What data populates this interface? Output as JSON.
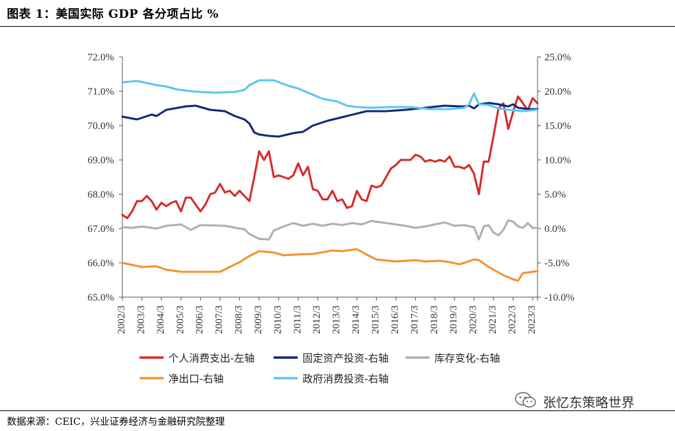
{
  "title": "图表 1：美国实际 GDP 各分项占比 %",
  "source": "数据来源：CEIC，兴业证券经济与金融研究院整理",
  "watermark": "张忆东策略世界",
  "chart_data": {
    "type": "line",
    "title": "美国实际 GDP 各分项占比 %",
    "left_axis": {
      "min": 65.0,
      "max": 72.0,
      "step": 1.0,
      "ticks": [
        "65.0%",
        "66.0%",
        "67.0%",
        "68.0%",
        "69.0%",
        "70.0%",
        "71.0%",
        "72.0%"
      ]
    },
    "right_axis": {
      "min": -10.0,
      "max": 25.0,
      "step": 5.0,
      "ticks": [
        "-10.0%",
        "-5.0%",
        "0.0%",
        "5.0%",
        "10.0%",
        "15.0%",
        "20.0%",
        "25.0%"
      ]
    },
    "x_start": "2002Q3",
    "x_end": "2023Q3",
    "x_tick_labels": [
      "2002/3",
      "2003/3",
      "2004/3",
      "2005/3",
      "2006/3",
      "2007/3",
      "2008/3",
      "2009/3",
      "2010/3",
      "2011/3",
      "2012/3",
      "2013/3",
      "2014/3",
      "2015/3",
      "2016/3",
      "2017/3",
      "2018/3",
      "2019/3",
      "2020/3",
      "2021/3",
      "2022/3",
      "2023/3"
    ],
    "grid": false,
    "legend_position": "bottom",
    "series": [
      {
        "name": "个人消费支出-左轴",
        "axis": "left",
        "color": "#d62b2b",
        "anchors": [
          [
            "2002Q3",
            67.4
          ],
          [
            "2002Q4",
            67.3
          ],
          [
            "2003Q1",
            67.5
          ],
          [
            "2003Q2",
            67.8
          ],
          [
            "2003Q3",
            67.8
          ],
          [
            "2003Q4",
            67.95
          ],
          [
            "2004Q1",
            67.8
          ],
          [
            "2004Q2",
            67.55
          ],
          [
            "2004Q3",
            67.75
          ],
          [
            "2004Q4",
            67.65
          ],
          [
            "2005Q1",
            67.75
          ],
          [
            "2005Q2",
            67.8
          ],
          [
            "2005Q3",
            67.5
          ],
          [
            "2005Q4",
            67.9
          ],
          [
            "2006Q1",
            67.9
          ],
          [
            "2006Q2",
            67.7
          ],
          [
            "2006Q3",
            67.5
          ],
          [
            "2006Q4",
            67.7
          ],
          [
            "2007Q1",
            68.0
          ],
          [
            "2007Q2",
            68.05
          ],
          [
            "2007Q3",
            68.3
          ],
          [
            "2007Q4",
            68.05
          ],
          [
            "2008Q1",
            68.1
          ],
          [
            "2008Q2",
            67.95
          ],
          [
            "2008Q3",
            68.1
          ],
          [
            "2008Q4",
            67.95
          ],
          [
            "2009Q1",
            67.8
          ],
          [
            "2009Q2",
            68.5
          ],
          [
            "2009Q3",
            69.25
          ],
          [
            "2009Q4",
            69.0
          ],
          [
            "2010Q1",
            69.25
          ],
          [
            "2010Q2",
            68.5
          ],
          [
            "2010Q3",
            68.55
          ],
          [
            "2010Q4",
            68.5
          ],
          [
            "2011Q1",
            68.45
          ],
          [
            "2011Q2",
            68.55
          ],
          [
            "2011Q3",
            68.9
          ],
          [
            "2011Q4",
            68.55
          ],
          [
            "2012Q1",
            68.8
          ],
          [
            "2012Q2",
            68.15
          ],
          [
            "2012Q3",
            68.1
          ],
          [
            "2012Q4",
            67.85
          ],
          [
            "2013Q1",
            67.85
          ],
          [
            "2013Q2",
            68.1
          ],
          [
            "2013Q3",
            67.8
          ],
          [
            "2013Q4",
            67.85
          ],
          [
            "2014Q1",
            67.6
          ],
          [
            "2014Q2",
            67.65
          ],
          [
            "2014Q3",
            68.1
          ],
          [
            "2014Q4",
            67.85
          ],
          [
            "2015Q1",
            67.8
          ],
          [
            "2015Q2",
            68.25
          ],
          [
            "2015Q3",
            68.2
          ],
          [
            "2015Q4",
            68.25
          ],
          [
            "2016Q1",
            68.5
          ],
          [
            "2016Q2",
            68.75
          ],
          [
            "2016Q3",
            68.85
          ],
          [
            "2016Q4",
            69.0
          ],
          [
            "2017Q1",
            69.0
          ],
          [
            "2017Q2",
            69.0
          ],
          [
            "2017Q3",
            69.15
          ],
          [
            "2017Q4",
            69.1
          ],
          [
            "2018Q1",
            68.95
          ],
          [
            "2018Q2",
            69.0
          ],
          [
            "2018Q3",
            68.95
          ],
          [
            "2018Q4",
            69.0
          ],
          [
            "2019Q1",
            68.95
          ],
          [
            "2019Q2",
            69.1
          ],
          [
            "2019Q3",
            68.8
          ],
          [
            "2019Q4",
            68.8
          ],
          [
            "2020Q1",
            68.75
          ],
          [
            "2020Q2",
            68.85
          ],
          [
            "2020Q3",
            68.6
          ],
          [
            "2020Q4",
            68.0
          ],
          [
            "2021Q1",
            68.95
          ],
          [
            "2021Q2",
            68.95
          ],
          [
            "2021Q3",
            69.7
          ],
          [
            "2021Q4",
            70.5
          ],
          [
            "2022Q1",
            70.65
          ],
          [
            "2022Q2",
            69.9
          ],
          [
            "2022Q3",
            70.4
          ],
          [
            "2022Q4",
            70.85
          ],
          [
            "2023Q1",
            70.65
          ],
          [
            "2023Q2",
            70.45
          ],
          [
            "2023Q3",
            70.8
          ],
          [
            "2023Q4",
            70.65
          ]
        ]
      },
      {
        "name": "固定资产投资-右轴",
        "axis": "right",
        "color": "#12297a",
        "anchors": [
          [
            "2002Q3",
            16.3
          ],
          [
            "2003Q2",
            15.9
          ],
          [
            "2004Q1",
            16.6
          ],
          [
            "2004Q2",
            16.4
          ],
          [
            "2004Q4",
            17.3
          ],
          [
            "2005Q4",
            17.8
          ],
          [
            "2006Q2",
            17.9
          ],
          [
            "2007Q1",
            17.3
          ],
          [
            "2007Q4",
            17.1
          ],
          [
            "2008Q2",
            16.4
          ],
          [
            "2008Q4",
            15.9
          ],
          [
            "2009Q1",
            15.3
          ],
          [
            "2009Q2",
            14.0
          ],
          [
            "2009Q3",
            13.7
          ],
          [
            "2010Q1",
            13.5
          ],
          [
            "2010Q3",
            13.4
          ],
          [
            "2011Q2",
            13.9
          ],
          [
            "2011Q4",
            14.1
          ],
          [
            "2012Q2",
            15.0
          ],
          [
            "2013Q1",
            15.7
          ],
          [
            "2014Q1",
            16.4
          ],
          [
            "2015Q1",
            17.1
          ],
          [
            "2016Q1",
            17.1
          ],
          [
            "2017Q1",
            17.3
          ],
          [
            "2018Q1",
            17.6
          ],
          [
            "2019Q1",
            17.9
          ],
          [
            "2019Q4",
            17.8
          ],
          [
            "2020Q1",
            17.8
          ],
          [
            "2020Q2",
            17.9
          ],
          [
            "2020Q3",
            17.5
          ],
          [
            "2020Q4",
            18.1
          ],
          [
            "2021Q2",
            18.3
          ],
          [
            "2021Q4",
            18.1
          ],
          [
            "2022Q2",
            17.8
          ],
          [
            "2022Q3",
            18.1
          ],
          [
            "2022Q4",
            17.6
          ],
          [
            "2023Q2",
            17.4
          ],
          [
            "2023Q3",
            17.4
          ],
          [
            "2023Q4",
            17.4
          ]
        ]
      },
      {
        "name": "库存变化-右轴",
        "axis": "right",
        "color": "#b0b0b0",
        "anchors": [
          [
            "2002Q3",
            0.2
          ],
          [
            "2003Q1",
            0.1
          ],
          [
            "2003Q3",
            0.3
          ],
          [
            "2004Q2",
            0.0
          ],
          [
            "2004Q4",
            0.4
          ],
          [
            "2005Q3",
            0.6
          ],
          [
            "2006Q1",
            -0.2
          ],
          [
            "2006Q3",
            0.5
          ],
          [
            "2007Q4",
            0.4
          ],
          [
            "2008Q3",
            0.0
          ],
          [
            "2008Q4",
            -0.1
          ],
          [
            "2009Q1",
            -0.8
          ],
          [
            "2009Q3",
            -1.5
          ],
          [
            "2010Q1",
            -1.6
          ],
          [
            "2010Q2",
            -0.3
          ],
          [
            "2010Q4",
            0.3
          ],
          [
            "2011Q2",
            0.8
          ],
          [
            "2011Q4",
            0.4
          ],
          [
            "2012Q2",
            0.7
          ],
          [
            "2012Q4",
            0.4
          ],
          [
            "2013Q2",
            0.7
          ],
          [
            "2013Q4",
            0.5
          ],
          [
            "2014Q2",
            0.8
          ],
          [
            "2014Q4",
            0.6
          ],
          [
            "2015Q2",
            1.1
          ],
          [
            "2016Q1",
            0.8
          ],
          [
            "2016Q3",
            0.6
          ],
          [
            "2017Q1",
            0.4
          ],
          [
            "2017Q3",
            0.1
          ],
          [
            "2018Q1",
            0.3
          ],
          [
            "2018Q3",
            0.6
          ],
          [
            "2019Q1",
            0.9
          ],
          [
            "2019Q3",
            0.4
          ],
          [
            "2020Q1",
            0.5
          ],
          [
            "2020Q3",
            0.2
          ],
          [
            "2020Q4",
            -1.6
          ],
          [
            "2021Q1",
            0.3
          ],
          [
            "2021Q2",
            0.5
          ],
          [
            "2021Q3",
            -0.6
          ],
          [
            "2021Q4",
            -1.0
          ],
          [
            "2022Q1",
            -0.2
          ],
          [
            "2022Q2",
            1.2
          ],
          [
            "2022Q3",
            1.0
          ],
          [
            "2022Q4",
            0.3
          ],
          [
            "2023Q1",
            0.1
          ],
          [
            "2023Q2",
            0.8
          ],
          [
            "2023Q3",
            0.1
          ],
          [
            "2023Q4",
            0.1
          ]
        ]
      },
      {
        "name": "净出口-右轴",
        "axis": "right",
        "color": "#f5932f",
        "anchors": [
          [
            "2002Q3",
            -5.0
          ],
          [
            "2003Q1",
            -5.3
          ],
          [
            "2003Q3",
            -5.6
          ],
          [
            "2004Q2",
            -5.5
          ],
          [
            "2004Q4",
            -6.0
          ],
          [
            "2005Q3",
            -6.3
          ],
          [
            "2006Q3",
            -6.3
          ],
          [
            "2007Q3",
            -6.3
          ],
          [
            "2008Q1",
            -5.6
          ],
          [
            "2008Q3",
            -4.9
          ],
          [
            "2009Q1",
            -4.0
          ],
          [
            "2009Q3",
            -3.3
          ],
          [
            "2010Q2",
            -3.5
          ],
          [
            "2010Q4",
            -3.9
          ],
          [
            "2011Q2",
            -3.8
          ],
          [
            "2012Q2",
            -3.7
          ],
          [
            "2013Q2",
            -3.2
          ],
          [
            "2013Q4",
            -3.3
          ],
          [
            "2014Q3",
            -3.0
          ],
          [
            "2015Q1",
            -3.8
          ],
          [
            "2015Q3",
            -4.5
          ],
          [
            "2016Q3",
            -4.8
          ],
          [
            "2017Q3",
            -4.6
          ],
          [
            "2018Q1",
            -4.8
          ],
          [
            "2018Q4",
            -4.7
          ],
          [
            "2019Q2",
            -4.9
          ],
          [
            "2019Q4",
            -5.2
          ],
          [
            "2020Q1",
            -5.0
          ],
          [
            "2020Q3",
            -4.5
          ],
          [
            "2020Q4",
            -4.6
          ],
          [
            "2021Q2",
            -5.6
          ],
          [
            "2021Q3",
            -6.0
          ],
          [
            "2022Q1",
            -6.8
          ],
          [
            "2022Q3",
            -7.4
          ],
          [
            "2022Q4",
            -7.6
          ],
          [
            "2023Q1",
            -6.5
          ],
          [
            "2023Q3",
            -6.3
          ],
          [
            "2023Q4",
            -6.2
          ]
        ]
      },
      {
        "name": "政府消费投资-右轴",
        "axis": "right",
        "color": "#5bc7ef",
        "anchors": [
          [
            "2002Q3",
            21.3
          ],
          [
            "2003Q2",
            21.5
          ],
          [
            "2003Q4",
            21.2
          ],
          [
            "2004Q2",
            20.9
          ],
          [
            "2004Q4",
            20.7
          ],
          [
            "2005Q2",
            20.3
          ],
          [
            "2006Q1",
            20.0
          ],
          [
            "2006Q3",
            19.9
          ],
          [
            "2007Q2",
            19.8
          ],
          [
            "2008Q2",
            19.9
          ],
          [
            "2008Q4",
            20.2
          ],
          [
            "2009Q1",
            20.9
          ],
          [
            "2009Q3",
            21.6
          ],
          [
            "2010Q2",
            21.6
          ],
          [
            "2011Q1",
            20.8
          ],
          [
            "2011Q3",
            20.4
          ],
          [
            "2012Q2",
            19.5
          ],
          [
            "2012Q4",
            18.9
          ],
          [
            "2013Q3",
            18.5
          ],
          [
            "2014Q1",
            17.9
          ],
          [
            "2014Q3",
            17.7
          ],
          [
            "2015Q2",
            17.6
          ],
          [
            "2016Q2",
            17.7
          ],
          [
            "2017Q2",
            17.7
          ],
          [
            "2018Q2",
            17.4
          ],
          [
            "2019Q2",
            17.4
          ],
          [
            "2020Q1",
            17.6
          ],
          [
            "2020Q2",
            18.1
          ],
          [
            "2020Q3",
            19.7
          ],
          [
            "2020Q4",
            18.1
          ],
          [
            "2021Q2",
            18.0
          ],
          [
            "2021Q4",
            17.5
          ],
          [
            "2022Q2",
            17.3
          ],
          [
            "2023Q1",
            17.1
          ],
          [
            "2023Q4",
            17.3
          ]
        ]
      }
    ]
  }
}
